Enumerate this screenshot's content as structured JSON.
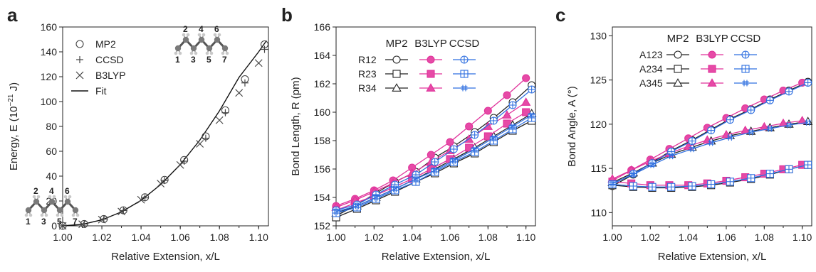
{
  "panel_letters": [
    "a",
    "b",
    "c"
  ],
  "chart_data": [
    {
      "type": "scatter",
      "panel": "a",
      "xlabel": "Relative Extension, x/L",
      "ylabel": "Energy, E (10^-21 J)",
      "ylabel_parts": {
        "pre": "Energy, E (10",
        "sup": "−21",
        "post": " J)"
      },
      "xlim": [
        1.0,
        1.105
      ],
      "ylim": [
        0,
        160
      ],
      "xticks": [
        "1.00",
        "1.02",
        "1.04",
        "1.06",
        "1.08",
        "1.10"
      ],
      "yticks": [
        "0",
        "20",
        "40",
        "60",
        "80",
        "100",
        "120",
        "140",
        "160"
      ],
      "legend": [
        "MP2",
        "CCSD",
        "B3LYP",
        "Fit"
      ],
      "legend_position": "top-left",
      "grid": false,
      "series": [
        {
          "name": "MP2",
          "marker": "circle",
          "x": [
            1.0,
            1.011,
            1.021,
            1.031,
            1.042,
            1.052,
            1.062,
            1.073,
            1.083,
            1.093,
            1.103
          ],
          "y": [
            0,
            1.5,
            5.5,
            12.5,
            23,
            37,
            53,
            72,
            93,
            118,
            146
          ]
        },
        {
          "name": "CCSD",
          "marker": "plus",
          "x": [
            1.0,
            1.011,
            1.021,
            1.031,
            1.042,
            1.052,
            1.062,
            1.073,
            1.083,
            1.093,
            1.103
          ],
          "y": [
            0,
            1.4,
            5.4,
            12.3,
            22.5,
            36.5,
            52,
            70.5,
            91,
            115,
            142
          ]
        },
        {
          "name": "B3LYP",
          "marker": "x",
          "x": [
            1.0,
            1.01,
            1.02,
            1.03,
            1.04,
            1.05,
            1.06,
            1.07,
            1.08,
            1.09,
            1.1
          ],
          "y": [
            0,
            1.3,
            5,
            11.5,
            21,
            34,
            49,
            66,
            85,
            107,
            131
          ]
        },
        {
          "name": "Fit",
          "marker": "line",
          "x": [
            1.0,
            1.01,
            1.02,
            1.03,
            1.04,
            1.05,
            1.06,
            1.07,
            1.08,
            1.09,
            1.1,
            1.104
          ],
          "y": [
            0,
            1.2,
            4.8,
            11.2,
            20.5,
            33.2,
            49.3,
            69,
            92.5,
            119.5,
            140,
            149
          ]
        }
      ]
    },
    {
      "type": "line",
      "panel": "b",
      "xlabel": "Relative Extension, x/L",
      "ylabel": "Bond Length, R (pm)",
      "xlim": [
        1.0,
        1.105
      ],
      "ylim": [
        152,
        166
      ],
      "xticks": [
        "1.00",
        "1.02",
        "1.04",
        "1.06",
        "1.08",
        "1.10"
      ],
      "yticks": [
        "152",
        "154",
        "156",
        "158",
        "160",
        "162",
        "164",
        "166"
      ],
      "legend_methods": [
        "MP2",
        "B3LYP",
        "CCSD"
      ],
      "legend_rows": [
        "R12",
        "R23",
        "R34"
      ],
      "legend_position": "top-right",
      "grid": false,
      "series": [
        {
          "name": "MP2 R12",
          "method": "MP2",
          "row": "R12",
          "marker": "circle",
          "x": [
            1.0,
            1.011,
            1.021,
            1.031,
            1.042,
            1.052,
            1.062,
            1.073,
            1.083,
            1.093,
            1.103
          ],
          "y": [
            152.7,
            153.5,
            154.3,
            155.1,
            155.8,
            156.8,
            157.6,
            158.6,
            159.6,
            160.7,
            161.9
          ]
        },
        {
          "name": "MP2 R23",
          "method": "MP2",
          "row": "R23",
          "marker": "square",
          "x": [
            1.0,
            1.011,
            1.021,
            1.031,
            1.042,
            1.052,
            1.062,
            1.073,
            1.083,
            1.093,
            1.103
          ],
          "y": [
            152.6,
            153.2,
            153.8,
            154.4,
            155.1,
            155.7,
            156.4,
            157.1,
            157.9,
            158.7,
            159.4
          ]
        },
        {
          "name": "MP2 R34",
          "method": "MP2",
          "row": "R34",
          "marker": "triangle",
          "x": [
            1.0,
            1.011,
            1.021,
            1.031,
            1.042,
            1.052,
            1.062,
            1.073,
            1.083,
            1.093,
            1.103
          ],
          "y": [
            152.9,
            153.4,
            154.0,
            154.6,
            155.3,
            156.0,
            156.7,
            157.5,
            158.3,
            159.1,
            159.9
          ]
        },
        {
          "name": "B3LYP R12",
          "method": "B3LYP",
          "row": "R12",
          "marker": "circle",
          "x": [
            1.0,
            1.01,
            1.02,
            1.03,
            1.04,
            1.05,
            1.06,
            1.07,
            1.08,
            1.09,
            1.1
          ],
          "y": [
            153.4,
            153.9,
            154.5,
            155.2,
            156.1,
            157.0,
            157.9,
            159.0,
            160.1,
            161.2,
            162.4
          ]
        },
        {
          "name": "B3LYP R23",
          "method": "B3LYP",
          "row": "R23",
          "marker": "square",
          "x": [
            1.0,
            1.01,
            1.02,
            1.03,
            1.04,
            1.05,
            1.06,
            1.07,
            1.08,
            1.09,
            1.1
          ],
          "y": [
            153.1,
            153.6,
            154.1,
            154.7,
            155.3,
            156.0,
            156.7,
            157.5,
            158.3,
            159.2,
            160.0
          ]
        },
        {
          "name": "B3LYP R34",
          "method": "B3LYP",
          "row": "R34",
          "marker": "triangle",
          "x": [
            1.0,
            1.01,
            1.02,
            1.03,
            1.04,
            1.05,
            1.06,
            1.07,
            1.08,
            1.09,
            1.1
          ],
          "y": [
            153.3,
            153.8,
            154.4,
            155.0,
            155.7,
            156.5,
            157.3,
            158.1,
            159.0,
            159.8,
            160.7
          ]
        },
        {
          "name": "CCSD R12",
          "method": "CCSD",
          "row": "R12",
          "marker": "circle-plus",
          "x": [
            1.0,
            1.011,
            1.021,
            1.031,
            1.042,
            1.052,
            1.062,
            1.073,
            1.083,
            1.093,
            1.103
          ],
          "y": [
            153.1,
            153.5,
            154.2,
            154.9,
            155.6,
            156.5,
            157.4,
            158.4,
            159.4,
            160.5,
            161.6
          ]
        },
        {
          "name": "CCSD R23",
          "method": "CCSD",
          "row": "R23",
          "marker": "square-plus",
          "x": [
            1.0,
            1.011,
            1.021,
            1.031,
            1.042,
            1.052,
            1.062,
            1.073,
            1.083,
            1.093,
            1.103
          ],
          "y": [
            152.9,
            153.3,
            153.9,
            154.5,
            155.1,
            155.8,
            156.5,
            157.2,
            158.0,
            158.8,
            159.6
          ]
        },
        {
          "name": "CCSD R34",
          "method": "CCSD",
          "row": "R34",
          "marker": "hash",
          "x": [
            1.0,
            1.011,
            1.021,
            1.031,
            1.042,
            1.052,
            1.062,
            1.073,
            1.083,
            1.093,
            1.103
          ],
          "y": [
            153.0,
            153.4,
            154.0,
            154.6,
            155.3,
            155.9,
            156.6,
            157.4,
            158.2,
            159.0,
            159.8
          ]
        }
      ]
    },
    {
      "type": "line",
      "panel": "c",
      "xlabel": "Relative Extension, x/L",
      "ylabel": "Bond Angle, A (°)",
      "xlim": [
        1.0,
        1.105
      ],
      "ylim": [
        108.5,
        131
      ],
      "xticks": [
        "1.00",
        "1.02",
        "1.04",
        "1.06",
        "1.08",
        "1.10"
      ],
      "yticks": [
        "110",
        "115",
        "120",
        "125",
        "130"
      ],
      "legend_methods": [
        "MP2",
        "B3LYP",
        "CCSD"
      ],
      "legend_rows": [
        "A123",
        "A234",
        "A345"
      ],
      "legend_position": "top-right",
      "grid": false,
      "series": [
        {
          "name": "MP2 A123",
          "method": "MP2",
          "row": "A123",
          "marker": "circle",
          "x": [
            1.0,
            1.011,
            1.021,
            1.031,
            1.042,
            1.052,
            1.062,
            1.073,
            1.083,
            1.093,
            1.103
          ],
          "y": [
            113.0,
            114.3,
            115.7,
            117.0,
            118.2,
            119.4,
            120.6,
            121.7,
            122.8,
            123.8,
            124.8
          ]
        },
        {
          "name": "MP2 A234",
          "method": "MP2",
          "row": "A234",
          "marker": "square",
          "x": [
            1.0,
            1.011,
            1.021,
            1.031,
            1.042,
            1.052,
            1.062,
            1.073,
            1.083,
            1.093,
            1.103
          ],
          "y": [
            113.1,
            112.9,
            112.8,
            112.8,
            112.9,
            113.1,
            113.4,
            113.8,
            114.3,
            114.9,
            115.4
          ]
        },
        {
          "name": "MP2 A345",
          "method": "MP2",
          "row": "A345",
          "marker": "triangle",
          "x": [
            1.0,
            1.011,
            1.021,
            1.031,
            1.042,
            1.052,
            1.062,
            1.073,
            1.083,
            1.093,
            1.103
          ],
          "y": [
            113.4,
            114.5,
            115.6,
            116.6,
            117.4,
            118.1,
            118.7,
            119.2,
            119.6,
            120.0,
            120.3
          ]
        },
        {
          "name": "B3LYP A123",
          "method": "B3LYP",
          "row": "A123",
          "marker": "circle",
          "x": [
            1.0,
            1.01,
            1.02,
            1.03,
            1.04,
            1.05,
            1.06,
            1.07,
            1.08,
            1.09,
            1.1
          ],
          "y": [
            113.6,
            114.8,
            116.0,
            117.2,
            118.4,
            119.6,
            120.7,
            121.8,
            122.8,
            123.8,
            124.7
          ]
        },
        {
          "name": "B3LYP A234",
          "method": "B3LYP",
          "row": "A234",
          "marker": "square",
          "x": [
            1.0,
            1.01,
            1.02,
            1.03,
            1.04,
            1.05,
            1.06,
            1.07,
            1.08,
            1.09,
            1.1
          ],
          "y": [
            113.5,
            113.3,
            113.1,
            113.1,
            113.1,
            113.3,
            113.6,
            114.0,
            114.4,
            114.9,
            115.4
          ]
        },
        {
          "name": "B3LYP A345",
          "method": "B3LYP",
          "row": "A345",
          "marker": "triangle",
          "x": [
            1.0,
            1.01,
            1.02,
            1.03,
            1.04,
            1.05,
            1.06,
            1.07,
            1.08,
            1.09,
            1.1
          ],
          "y": [
            113.8,
            114.8,
            115.8,
            116.7,
            117.5,
            118.2,
            118.8,
            119.3,
            119.7,
            120.1,
            120.4
          ]
        },
        {
          "name": "CCSD A123",
          "method": "CCSD",
          "row": "A123",
          "marker": "circle-plus",
          "x": [
            1.0,
            1.011,
            1.021,
            1.031,
            1.042,
            1.052,
            1.062,
            1.073,
            1.083,
            1.093,
            1.103
          ],
          "y": [
            113.2,
            114.4,
            115.6,
            116.9,
            118.1,
            119.3,
            120.5,
            121.6,
            122.7,
            123.7,
            124.7
          ]
        },
        {
          "name": "CCSD A234",
          "method": "CCSD",
          "row": "A234",
          "marker": "square-plus",
          "x": [
            1.0,
            1.011,
            1.021,
            1.031,
            1.042,
            1.052,
            1.062,
            1.073,
            1.083,
            1.093,
            1.103
          ],
          "y": [
            113.2,
            113.0,
            112.9,
            112.9,
            113.0,
            113.2,
            113.5,
            113.9,
            114.4,
            114.9,
            115.4
          ]
        },
        {
          "name": "CCSD A345",
          "method": "CCSD",
          "row": "A345",
          "marker": "hash",
          "x": [
            1.0,
            1.011,
            1.021,
            1.031,
            1.042,
            1.052,
            1.062,
            1.073,
            1.083,
            1.093,
            1.103
          ],
          "y": [
            113.3,
            114.3,
            115.4,
            116.4,
            117.2,
            117.9,
            118.5,
            119.1,
            119.5,
            119.9,
            120.2
          ]
        }
      ]
    }
  ],
  "molecule_labels": {
    "top": [
      "2",
      "4",
      "6",
      "1",
      "3",
      "5",
      "7"
    ],
    "bottom": [
      "2",
      "4",
      "6",
      "1",
      "3",
      "5",
      "7"
    ]
  },
  "colors": {
    "MP2": "#222222",
    "B3LYP": "#e0329b",
    "CCSD": "#2f6fe0",
    "B3LYP_fill": "#e64aa6",
    "axis": "#222222",
    "carbon": "#7a7a7a",
    "hydrogen": "#c8c8c8"
  }
}
